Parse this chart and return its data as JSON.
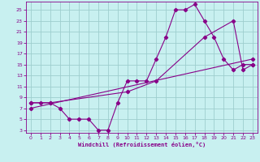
{
  "xlabel": "Windchill (Refroidissement éolien,°C)",
  "bg_color": "#c8f0f0",
  "grid_color": "#9ecece",
  "line_color": "#880088",
  "x_ticks": [
    0,
    1,
    2,
    3,
    4,
    5,
    6,
    7,
    8,
    9,
    10,
    11,
    12,
    13,
    14,
    15,
    16,
    17,
    18,
    19,
    20,
    21,
    22,
    23
  ],
  "y_ticks": [
    3,
    5,
    7,
    9,
    11,
    13,
    15,
    17,
    19,
    21,
    23,
    25
  ],
  "xlim": [
    -0.5,
    23.5
  ],
  "ylim": [
    2.5,
    26.5
  ],
  "line1_x": [
    0,
    1,
    2,
    3,
    4,
    5,
    6,
    7,
    8,
    9,
    10,
    11,
    12,
    13,
    14,
    15,
    16,
    17,
    18,
    19,
    20,
    21,
    22,
    23
  ],
  "line1_y": [
    8,
    8,
    8,
    7,
    5,
    5,
    5,
    3,
    3,
    8,
    12,
    12,
    12,
    16,
    20,
    25,
    25,
    26,
    23,
    20,
    16,
    14,
    15,
    15
  ],
  "line2_x": [
    0,
    2,
    10,
    13,
    18,
    21,
    22,
    23
  ],
  "line2_y": [
    8,
    8,
    10,
    12,
    20,
    23,
    14,
    15
  ],
  "line3_x": [
    0,
    23
  ],
  "line3_y": [
    7,
    16
  ]
}
